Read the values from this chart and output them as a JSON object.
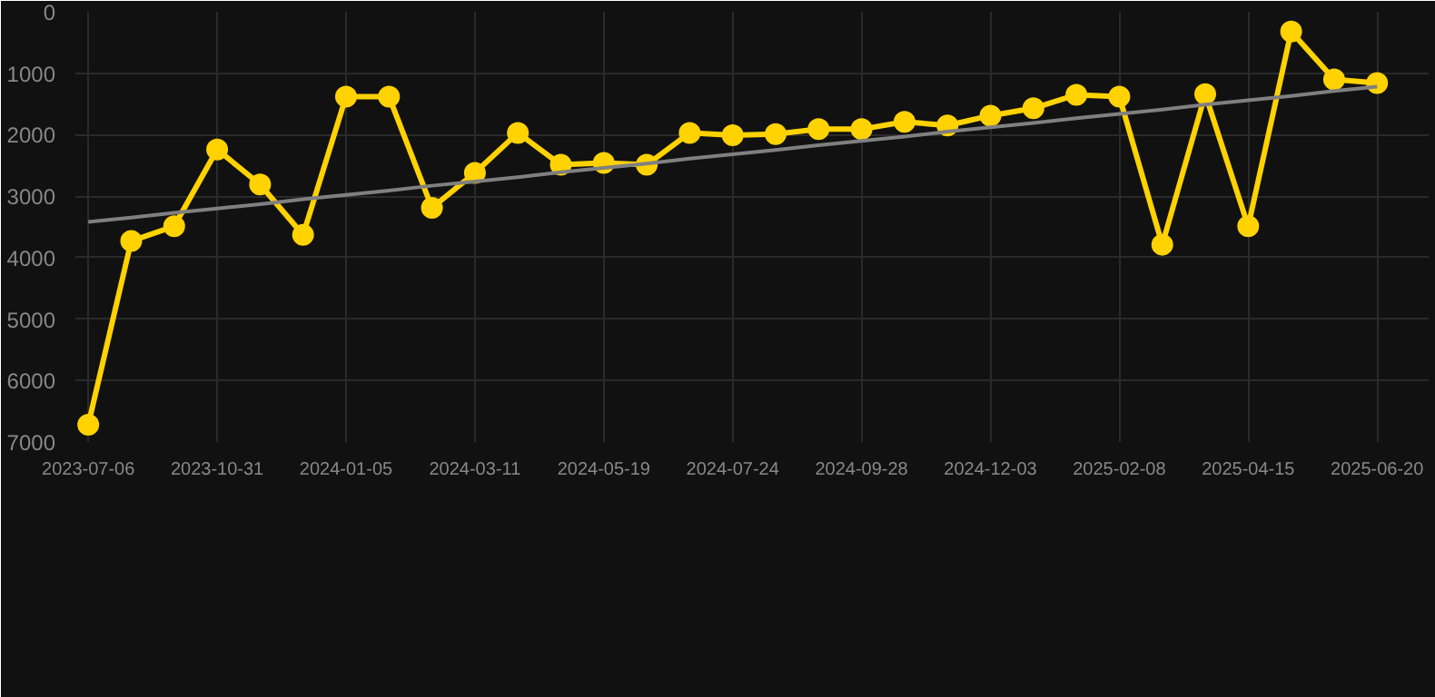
{
  "chart_data": {
    "type": "line",
    "categories": [
      "2023-07-06",
      null,
      null,
      "2023-10-31",
      null,
      null,
      "2024-01-05",
      null,
      null,
      "2024-03-11",
      null,
      null,
      "2024-05-19",
      null,
      null,
      "2024-07-24",
      null,
      null,
      "2024-09-28",
      null,
      null,
      "2024-12-03",
      null,
      null,
      "2025-02-08",
      null,
      null,
      "2025-04-15",
      null,
      null,
      "2025-06-20"
    ],
    "series": [
      {
        "color": "#ffd200",
        "marker": "circle",
        "values": [
          6720,
          3730,
          3490,
          2240,
          2810,
          3630,
          1380,
          1380,
          3190,
          2620,
          1970,
          2490,
          2460,
          2490,
          1970,
          2010,
          1990,
          1910,
          1910,
          1790,
          1850,
          1690,
          1570,
          1350,
          1380,
          3790,
          1340,
          3490,
          320,
          1100,
          1160
        ]
      },
      {
        "type": "line",
        "color": "#808080",
        "marker": "none",
        "values": [
          3420,
          3350,
          3270,
          3200,
          3130,
          3050,
          2980,
          2910,
          2830,
          2760,
          2690,
          2610,
          2540,
          2470,
          2390,
          2320,
          2250,
          2170,
          2100,
          2030,
          1950,
          1880,
          1810,
          1730,
          1660,
          1590,
          1510,
          1440,
          1370,
          1290,
          1220
        ]
      }
    ],
    "ylim": [
      7000,
      0
    ],
    "yticks": [
      0,
      1000,
      2000,
      3000,
      4000,
      5000,
      6000,
      7000
    ],
    "grid": true
  }
}
